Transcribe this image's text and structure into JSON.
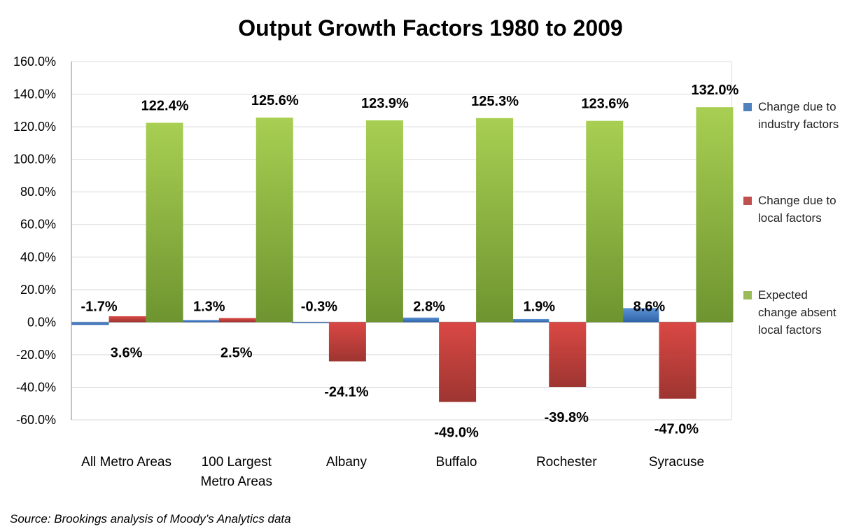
{
  "chart_data": {
    "type": "bar",
    "title": "Output Growth Factors 1980 to 2009",
    "categories": [
      [
        "All Metro Areas"
      ],
      [
        "100 Largest",
        "Metro Areas"
      ],
      [
        "Albany"
      ],
      [
        "Buffalo"
      ],
      [
        "Rochester"
      ],
      [
        "Syracuse"
      ]
    ],
    "series": [
      {
        "name": "Change due to industry factors",
        "legend_lines": [
          "Change due to",
          "industry factors"
        ],
        "color": "#4f81bd",
        "values": [
          -1.7,
          1.3,
          -0.3,
          2.8,
          1.9,
          8.6
        ],
        "labels": [
          "-1.7%",
          "1.3%",
          "-0.3%",
          "2.8%",
          "1.9%",
          "8.6%"
        ]
      },
      {
        "name": "Change due to local factors",
        "legend_lines": [
          "Change due to",
          "local factors"
        ],
        "color": "#c0504d",
        "values": [
          3.6,
          2.5,
          -24.1,
          -49.0,
          -39.8,
          -47.0
        ],
        "labels": [
          "3.6%",
          "2.5%",
          "-24.1%",
          "-49.0%",
          "-39.8%",
          "-47.0%"
        ]
      },
      {
        "name": "Expected change absent local factors",
        "legend_lines": [
          "Expected",
          "change absent",
          "local factors"
        ],
        "color": "#9bbb59",
        "values": [
          122.4,
          125.6,
          123.9,
          125.3,
          123.6,
          132.0
        ],
        "labels": [
          "122.4%",
          "125.6%",
          "123.9%",
          "125.3%",
          "123.6%",
          "132.0%"
        ]
      }
    ],
    "y_ticks": [
      "-60.0%",
      "-40.0%",
      "-20.0%",
      "0.0%",
      "20.0%",
      "40.0%",
      "60.0%",
      "80.0%",
      "100.0%",
      "120.0%",
      "140.0%",
      "160.0%"
    ],
    "ylim": [
      -60,
      160
    ],
    "grid": true,
    "legend": "right"
  },
  "source_note": "Source: Brookings analysis of Moody’s Analytics data"
}
